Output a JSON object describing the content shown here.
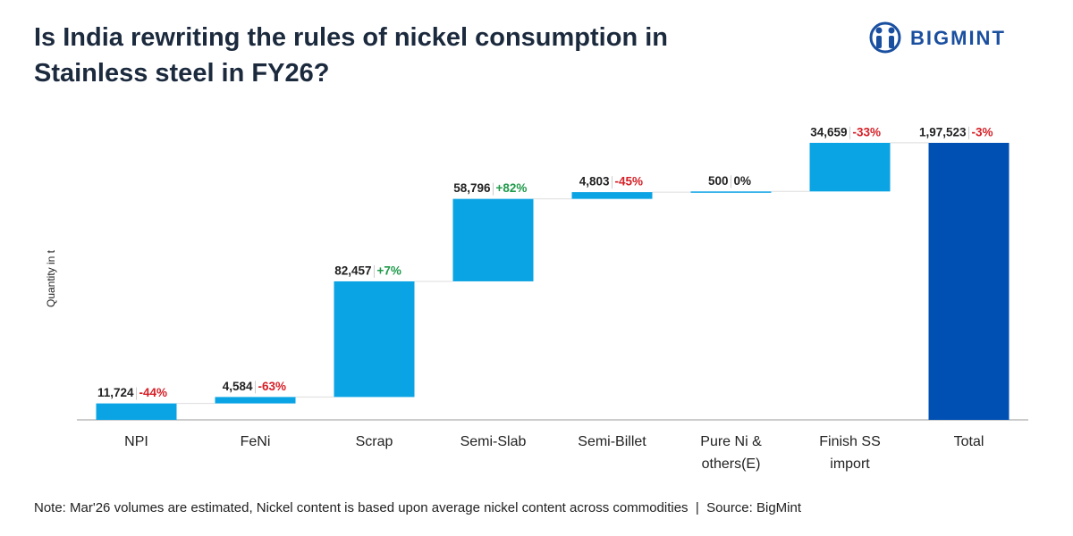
{
  "logo": "BIGMINT",
  "chart_data": {
    "type": "waterfall",
    "title": "Is India rewriting the rules of nickel consumption in Stainless steel in FY26?",
    "y_label": "Quantity in t",
    "categories": [
      "NPI",
      "FeNi",
      "Scrap",
      "Semi-Slab",
      "Semi-Billet",
      "Pure Ni & others(E)",
      "Finish SS import",
      "Total"
    ],
    "measures": [
      "relative",
      "relative",
      "relative",
      "relative",
      "relative",
      "relative",
      "relative",
      "total"
    ],
    "values": [
      11724,
      4584,
      82457,
      58796,
      4803,
      500,
      34659,
      197523
    ],
    "value_labels": [
      "11,724",
      "4,584",
      "82,457",
      "58,796",
      "4,803",
      "500",
      "34,659",
      "1,97,523"
    ],
    "changes": [
      -44,
      -63,
      7,
      82,
      -45,
      0,
      -33,
      -3
    ],
    "change_labels": [
      "-44%",
      "-63%",
      "+7%",
      "+82%",
      "-45%",
      "0%",
      "-33%",
      "-3%"
    ],
    "color": "#0aa3e3",
    "total_color": "#0050b3",
    "ylim": [
      0,
      200000
    ],
    "note": "Note: Mar'26 volumes are estimated, Nickel content is based upon average nickel content across commodities  |  Source: BigMint"
  }
}
